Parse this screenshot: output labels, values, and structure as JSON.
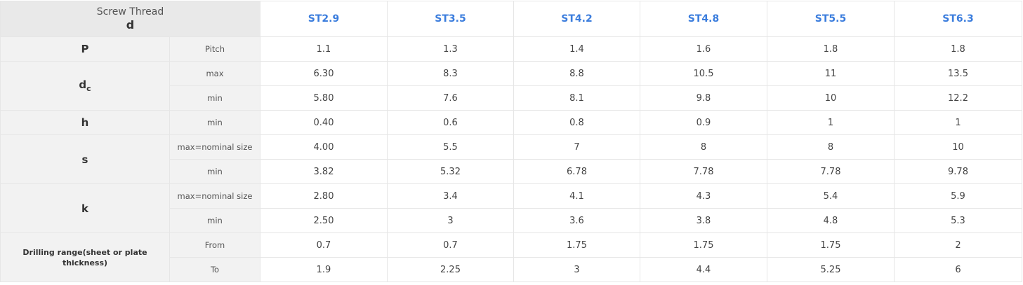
{
  "header": {
    "corner_line1": "Screw Thread",
    "corner_line2": "d",
    "sizes": [
      "ST2.9",
      "ST3.5",
      "ST4.2",
      "ST4.8",
      "ST5.5",
      "ST6.3"
    ]
  },
  "rows": [
    {
      "symbol": "P",
      "sub": "Pitch",
      "values": [
        "1.1",
        "1.3",
        "1.4",
        "1.6",
        "1.8",
        "1.8"
      ]
    },
    {
      "symbol": "d",
      "symbol_sub": "c",
      "sub": "max",
      "values": [
        "6.30",
        "8.3",
        "8.8",
        "10.5",
        "11",
        "13.5"
      ]
    },
    {
      "sub": "min",
      "values": [
        "5.80",
        "7.6",
        "8.1",
        "9.8",
        "10",
        "12.2"
      ]
    },
    {
      "symbol": "h",
      "sub": "min",
      "values": [
        "0.40",
        "0.6",
        "0.8",
        "0.9",
        "1",
        "1"
      ]
    },
    {
      "symbol": "s",
      "sub": "max=nominal size",
      "values": [
        "4.00",
        "5.5",
        "7",
        "8",
        "8",
        "10"
      ]
    },
    {
      "sub": "min",
      "values": [
        "3.82",
        "5.32",
        "6.78",
        "7.78",
        "7.78",
        "9.78"
      ]
    },
    {
      "symbol": "k",
      "sub": "max=nominal size",
      "values": [
        "2.80",
        "3.4",
        "4.1",
        "4.3",
        "5.4",
        "5.9"
      ]
    },
    {
      "sub": "min",
      "values": [
        "2.50",
        "3",
        "3.6",
        "3.8",
        "4.8",
        "5.3"
      ]
    },
    {
      "symbol": "Drilling range(sheet or plate thickness)",
      "sub": "From",
      "values": [
        "0.7",
        "0.7",
        "1.75",
        "1.75",
        "1.75",
        "2"
      ]
    },
    {
      "sub": "To",
      "values": [
        "1.9",
        "2.25",
        "3",
        "4.4",
        "5.25",
        "6"
      ]
    }
  ],
  "colors": {
    "header_link": "#3b7ddd",
    "label_bg": "#f2f2f2",
    "corner_bg": "#e9e9e9",
    "border": "#e6e6e6"
  }
}
